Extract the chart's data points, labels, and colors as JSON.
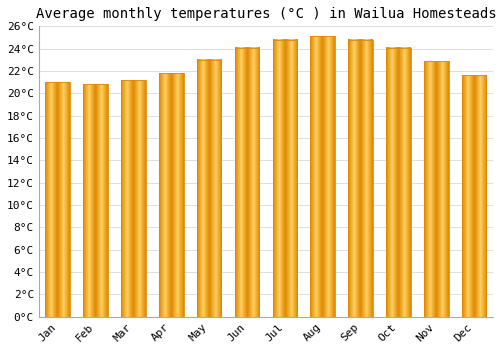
{
  "title": "Average monthly temperatures (°C ) in Wailua Homesteads",
  "months": [
    "Jan",
    "Feb",
    "Mar",
    "Apr",
    "May",
    "Jun",
    "Jul",
    "Aug",
    "Sep",
    "Oct",
    "Nov",
    "Dec"
  ],
  "values": [
    21.0,
    20.8,
    21.2,
    21.8,
    23.0,
    24.1,
    24.8,
    25.1,
    24.8,
    24.1,
    22.9,
    21.6
  ],
  "bar_color_left": "#F5A800",
  "bar_color_center": "#FFD060",
  "bar_color_right": "#E08800",
  "background_color": "#ffffff",
  "plot_bg_color": "#ffffff",
  "ylim": [
    0,
    26
  ],
  "ytick_step": 2,
  "title_fontsize": 10,
  "tick_fontsize": 8,
  "grid_color": "#dddddd",
  "figsize": [
    5.0,
    3.5
  ],
  "dpi": 100
}
